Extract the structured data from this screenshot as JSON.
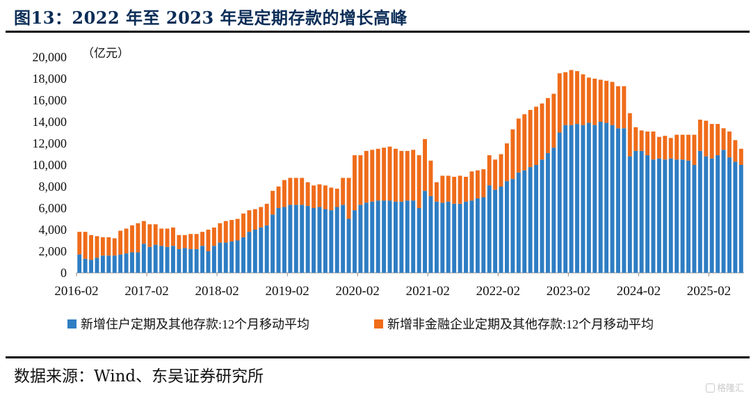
{
  "header": {
    "title": "图13：2022 年至 2023 年是定期存款的增长高峰"
  },
  "footer": {
    "source": "数据来源：Wind、东吴证券研究所",
    "watermark": "格隆汇"
  },
  "colors": {
    "household": "#2e7dc3",
    "corporate": "#ef6c1a",
    "title": "#0b2d57"
  },
  "chart_data": {
    "type": "bar",
    "stacked": true,
    "unit": "（亿元）",
    "ylim": [
      0,
      20000
    ],
    "yticks": [
      0,
      2000,
      4000,
      6000,
      8000,
      10000,
      12000,
      14000,
      16000,
      18000,
      20000
    ],
    "ytick_labels": [
      "0",
      "2,000",
      "4,000",
      "6,000",
      "8,000",
      "10,000",
      "12,000",
      "14,000",
      "16,000",
      "18,000",
      "20,000"
    ],
    "xtick_labels": [
      "2016-02",
      "2017-02",
      "2018-02",
      "2019-02",
      "2020-02",
      "2021-02",
      "2022-02",
      "2023-02",
      "2024-02",
      "2025-02"
    ],
    "xtick_every": 12,
    "grid": false,
    "legend_position": "bottom",
    "series": [
      {
        "name": "新增住户定期及其他存款:12个月移动平均",
        "color": "#2e7dc3",
        "values": [
          1700,
          1300,
          1200,
          1400,
          1600,
          1600,
          1600,
          1700,
          1800,
          1900,
          1900,
          2700,
          2400,
          2600,
          2500,
          2400,
          2500,
          2200,
          2300,
          2200,
          2200,
          2500,
          2000,
          2500,
          2800,
          2800,
          2900,
          3000,
          3300,
          3800,
          4000,
          4200,
          4400,
          5400,
          6000,
          6100,
          6300,
          6300,
          6300,
          6200,
          6000,
          6100,
          5900,
          5800,
          6100,
          6300,
          5000,
          5800,
          6300,
          6500,
          6600,
          6700,
          6700,
          6700,
          6600,
          6600,
          6700,
          6700,
          6000,
          7600,
          7100,
          6600,
          6500,
          6600,
          6400,
          6400,
          6600,
          6700,
          6900,
          7000,
          8100,
          7700,
          8000,
          8500,
          8700,
          9300,
          9500,
          9800,
          10000,
          10500,
          11100,
          11600,
          13000,
          13700,
          13700,
          13800,
          13700,
          13900,
          13700,
          14000,
          13900,
          13700,
          13400,
          13400,
          10800,
          11300,
          11300,
          10900,
          10500,
          10600,
          10500,
          10600,
          10500,
          10500,
          10400,
          10000,
          11300,
          10800,
          10600,
          10900,
          11400,
          10700,
          10300,
          10000
        ]
      },
      {
        "name": "新增非金融企业定期及其他存款:12个月移动平均",
        "color": "#ef6c1a",
        "values": [
          2100,
          2500,
          2300,
          2000,
          1700,
          1700,
          1600,
          2200,
          2300,
          2500,
          2700,
          2100,
          2100,
          1900,
          1600,
          1700,
          1700,
          1300,
          1200,
          1400,
          1400,
          1300,
          2000,
          1700,
          1800,
          2000,
          2000,
          2000,
          2200,
          2000,
          1900,
          1900,
          2000,
          2200,
          2000,
          2500,
          2500,
          2500,
          2500,
          2200,
          2100,
          2100,
          2200,
          2100,
          1700,
          2500,
          3800,
          5100,
          4600,
          4800,
          4800,
          4800,
          4900,
          5000,
          4900,
          4700,
          4600,
          4700,
          4900,
          4800,
          3300,
          1800,
          2500,
          2400,
          2500,
          2600,
          2300,
          2700,
          2600,
          2600,
          2800,
          2800,
          3000,
          3500,
          4600,
          5000,
          5200,
          5300,
          5400,
          5200,
          5100,
          5000,
          5500,
          4900,
          5100,
          4900,
          4700,
          4200,
          4300,
          3900,
          3900,
          4000,
          3900,
          3900,
          4000,
          2200,
          1900,
          2200,
          2600,
          2000,
          2200,
          1900,
          2300,
          2300,
          2400,
          2800,
          2900,
          3300,
          3200,
          2900,
          2000,
          2400,
          2000,
          1500
        ]
      }
    ]
  }
}
